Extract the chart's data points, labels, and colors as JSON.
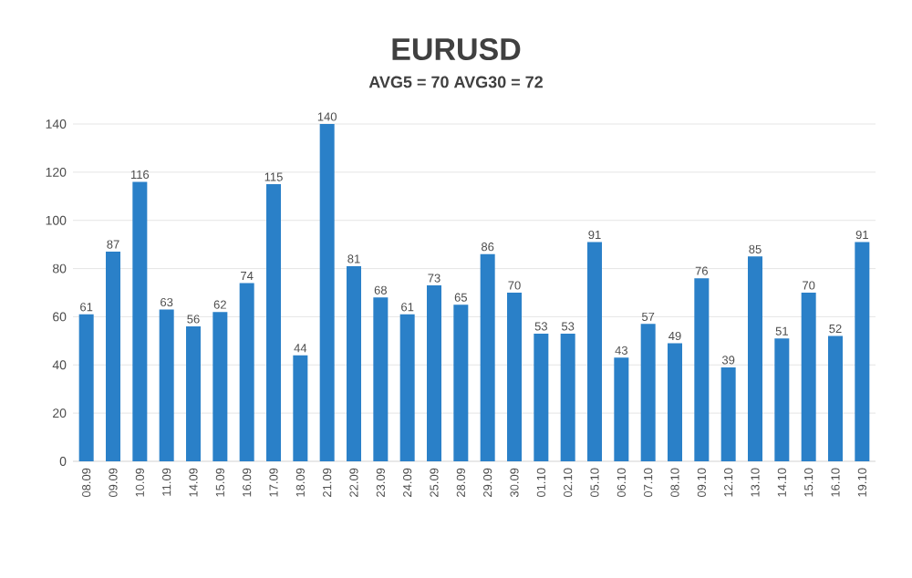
{
  "chart_data": {
    "type": "bar",
    "title": "EURUSD",
    "subtitle": "AVG5 = 70 AVG30 = 72",
    "categories": [
      "08.09",
      "09.09",
      "10.09",
      "11.09",
      "14.09",
      "15.09",
      "16.09",
      "17.09",
      "18.09",
      "21.09",
      "22.09",
      "23.09",
      "24.09",
      "25.09",
      "28.09",
      "29.09",
      "30.09",
      "01.10",
      "02.10",
      "05.10",
      "06.10",
      "07.10",
      "08.10",
      "09.10",
      "12.10",
      "13.10",
      "14.10",
      "15.10",
      "16.10",
      "19.10"
    ],
    "values": [
      61,
      87,
      116,
      63,
      56,
      62,
      74,
      115,
      44,
      140,
      81,
      68,
      61,
      73,
      65,
      86,
      70,
      53,
      53,
      91,
      43,
      57,
      49,
      76,
      39,
      85,
      51,
      70,
      52,
      91
    ],
    "color": "#2a80c8",
    "ylim": [
      0,
      140
    ],
    "yticks": [
      0,
      20,
      40,
      60,
      80,
      100,
      120,
      140
    ],
    "grid": "y",
    "data_labels": true
  }
}
